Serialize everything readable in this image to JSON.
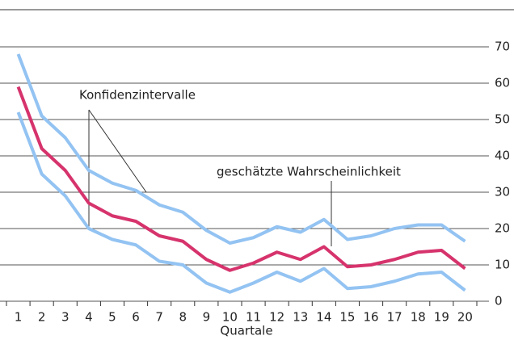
{
  "chart_data": {
    "type": "line",
    "x_label": "Quartale",
    "annotations": [
      "Konfidenzintervalle",
      "geschätzte Wahrscheinlichkeit"
    ],
    "categories": [
      "1",
      "2",
      "3",
      "4",
      "5",
      "6",
      "7",
      "8",
      "9",
      "10",
      "11",
      "12",
      "13",
      "14",
      "15",
      "16",
      "17",
      "18",
      "19",
      "20"
    ],
    "series": [
      {
        "color": "#93c3f2",
        "values": [
          68,
          51,
          45,
          36,
          32.5,
          30.5,
          26.5,
          24.5,
          19.5,
          16,
          17.5,
          20.5,
          19,
          22.5,
          17,
          18,
          20,
          21,
          21,
          16.5
        ]
      },
      {
        "color": "#93c3f2",
        "values": [
          52,
          35,
          29,
          20,
          17,
          15.5,
          11,
          10,
          5,
          2.5,
          5,
          8,
          5.5,
          9,
          3.5,
          4,
          5.5,
          7.5,
          8,
          3
        ]
      },
      {
        "color": "#d6336c",
        "values": [
          59,
          42,
          36,
          27,
          23.5,
          22,
          18,
          16.5,
          11.5,
          8.5,
          10.5,
          13.5,
          11.5,
          15,
          9.5,
          10,
          11.5,
          13.5,
          14,
          9
        ]
      }
    ],
    "ylim": [
      0,
      70
    ],
    "yticks": [
      0,
      10,
      20,
      30,
      40,
      50,
      60,
      70
    ],
    "grid": true
  }
}
